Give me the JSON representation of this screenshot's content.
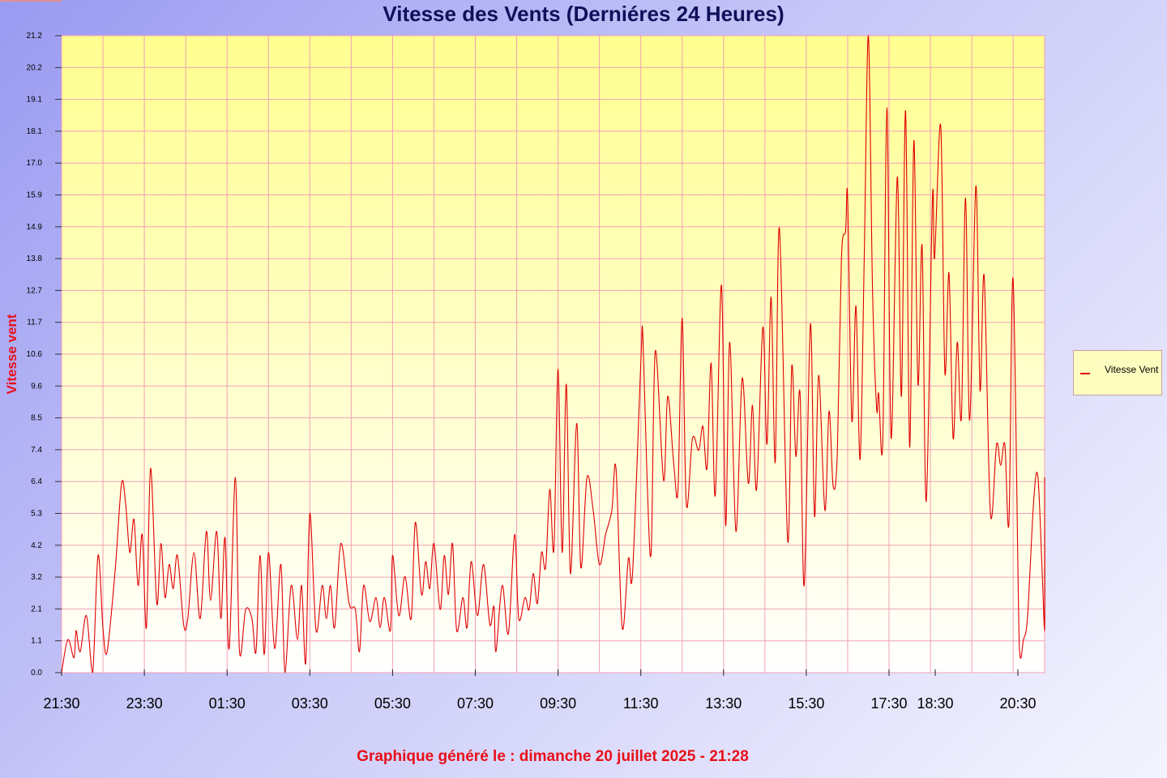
{
  "title": "Vitesse des Vents (Derniéres 24 Heures)",
  "ylabel": "Vitesse vent",
  "footer": "Graphique généré le : dimanche 20 juillet 2025 - 21:28",
  "legend": {
    "label": "Vitesse Vent"
  },
  "colors": {
    "line": "#e00000",
    "grid": "#f0a0b4",
    "plot_top": "#ffff90",
    "plot_bottom": "#ffffff",
    "title": "#10105a",
    "accent": "#e8101a"
  },
  "chart_data": {
    "type": "line",
    "title": "Vitesse des Vents (Derniéres 24 Heures)",
    "xlabel": "",
    "ylabel": "Vitesse vent",
    "x_range_hours": [
      0,
      23.8
    ],
    "ylim": [
      0,
      21.2
    ],
    "y_ticks": [
      "0.0",
      "1.1",
      "2.1",
      "3.2",
      "4.2",
      "5.3",
      "6.4",
      "7.4",
      "8.5",
      "9.6",
      "10.6",
      "11.7",
      "12.7",
      "13.8",
      "14.9",
      "15.9",
      "17.0",
      "18.1",
      "19.1",
      "20.2",
      "21.2"
    ],
    "x_ticks": [
      {
        "label": "21:30",
        "hours": 0
      },
      {
        "label": "23:30",
        "hours": 2
      },
      {
        "label": "01:30",
        "hours": 4
      },
      {
        "label": "03:30",
        "hours": 6
      },
      {
        "label": "05:30",
        "hours": 8
      },
      {
        "label": "07:30",
        "hours": 10
      },
      {
        "label": "09:30",
        "hours": 12
      },
      {
        "label": "11:30",
        "hours": 14
      },
      {
        "label": "13:30",
        "hours": 16
      },
      {
        "label": "15:30",
        "hours": 18
      },
      {
        "label": "17:30",
        "hours": 20
      },
      {
        "label": "18:30",
        "hours": 21.1
      },
      {
        "label": "20:30",
        "hours": 23.1
      }
    ],
    "grid": true,
    "legend_position": "right",
    "series": [
      {
        "name": "Vitesse Vent",
        "points": [
          [
            0.0,
            0.0
          ],
          [
            0.15,
            1.1
          ],
          [
            0.3,
            0.5
          ],
          [
            0.35,
            1.4
          ],
          [
            0.45,
            0.7
          ],
          [
            0.6,
            1.9
          ],
          [
            0.75,
            0.0
          ],
          [
            0.88,
            3.9
          ],
          [
            1.0,
            1.5
          ],
          [
            1.1,
            0.7
          ],
          [
            1.3,
            3.5
          ],
          [
            1.45,
            6.3
          ],
          [
            1.55,
            5.6
          ],
          [
            1.65,
            4.0
          ],
          [
            1.75,
            5.1
          ],
          [
            1.85,
            2.9
          ],
          [
            1.95,
            4.6
          ],
          [
            2.05,
            1.5
          ],
          [
            2.15,
            6.8
          ],
          [
            2.3,
            2.3
          ],
          [
            2.4,
            4.3
          ],
          [
            2.5,
            2.5
          ],
          [
            2.6,
            3.6
          ],
          [
            2.7,
            2.8
          ],
          [
            2.8,
            3.9
          ],
          [
            2.95,
            1.6
          ],
          [
            3.05,
            1.8
          ],
          [
            3.2,
            4.0
          ],
          [
            3.35,
            1.8
          ],
          [
            3.5,
            4.7
          ],
          [
            3.6,
            2.4
          ],
          [
            3.75,
            4.7
          ],
          [
            3.85,
            1.8
          ],
          [
            3.95,
            4.5
          ],
          [
            4.05,
            0.8
          ],
          [
            4.2,
            6.5
          ],
          [
            4.3,
            0.7
          ],
          [
            4.45,
            2.1
          ],
          [
            4.6,
            1.8
          ],
          [
            4.7,
            0.7
          ],
          [
            4.8,
            3.9
          ],
          [
            4.9,
            0.6
          ],
          [
            5.0,
            4.0
          ],
          [
            5.15,
            0.8
          ],
          [
            5.3,
            3.6
          ],
          [
            5.4,
            0.0
          ],
          [
            5.55,
            2.9
          ],
          [
            5.7,
            1.1
          ],
          [
            5.8,
            2.9
          ],
          [
            5.9,
            0.3
          ],
          [
            6.0,
            5.3
          ],
          [
            6.15,
            1.4
          ],
          [
            6.3,
            2.9
          ],
          [
            6.4,
            1.8
          ],
          [
            6.5,
            2.9
          ],
          [
            6.6,
            1.5
          ],
          [
            6.75,
            4.3
          ],
          [
            6.95,
            2.3
          ],
          [
            7.1,
            2.1
          ],
          [
            7.2,
            0.7
          ],
          [
            7.3,
            2.9
          ],
          [
            7.45,
            1.7
          ],
          [
            7.6,
            2.5
          ],
          [
            7.7,
            1.5
          ],
          [
            7.8,
            2.5
          ],
          [
            7.95,
            1.4
          ],
          [
            8.0,
            3.9
          ],
          [
            8.15,
            1.9
          ],
          [
            8.3,
            3.2
          ],
          [
            8.45,
            1.8
          ],
          [
            8.55,
            5.0
          ],
          [
            8.7,
            2.6
          ],
          [
            8.8,
            3.7
          ],
          [
            8.9,
            2.8
          ],
          [
            9.0,
            4.3
          ],
          [
            9.15,
            2.1
          ],
          [
            9.25,
            3.9
          ],
          [
            9.35,
            2.6
          ],
          [
            9.45,
            4.3
          ],
          [
            9.55,
            1.4
          ],
          [
            9.7,
            2.5
          ],
          [
            9.8,
            1.5
          ],
          [
            9.9,
            3.7
          ],
          [
            10.05,
            1.9
          ],
          [
            10.2,
            3.6
          ],
          [
            10.35,
            1.6
          ],
          [
            10.45,
            2.2
          ],
          [
            10.5,
            0.7
          ],
          [
            10.65,
            2.9
          ],
          [
            10.8,
            1.3
          ],
          [
            10.95,
            4.6
          ],
          [
            11.05,
            1.8
          ],
          [
            11.2,
            2.5
          ],
          [
            11.3,
            2.1
          ],
          [
            11.4,
            3.3
          ],
          [
            11.5,
            2.3
          ],
          [
            11.6,
            4.0
          ],
          [
            11.7,
            3.5
          ],
          [
            11.8,
            6.1
          ],
          [
            11.9,
            4.1
          ],
          [
            12.0,
            10.1
          ],
          [
            12.1,
            4.0
          ],
          [
            12.2,
            9.6
          ],
          [
            12.3,
            3.3
          ],
          [
            12.45,
            8.3
          ],
          [
            12.55,
            3.5
          ],
          [
            12.7,
            6.5
          ],
          [
            12.85,
            5.4
          ],
          [
            13.0,
            3.6
          ],
          [
            13.15,
            4.6
          ],
          [
            13.3,
            5.4
          ],
          [
            13.4,
            6.8
          ],
          [
            13.55,
            1.5
          ],
          [
            13.7,
            3.8
          ],
          [
            13.8,
            3.3
          ],
          [
            14.0,
            10.3
          ],
          [
            14.05,
            11.2
          ],
          [
            14.15,
            6.5
          ],
          [
            14.25,
            4.0
          ],
          [
            14.35,
            10.7
          ],
          [
            14.55,
            6.4
          ],
          [
            14.65,
            9.2
          ],
          [
            14.8,
            6.9
          ],
          [
            14.9,
            6.1
          ],
          [
            15.0,
            11.8
          ],
          [
            15.1,
            5.6
          ],
          [
            15.25,
            7.8
          ],
          [
            15.4,
            7.4
          ],
          [
            15.5,
            8.2
          ],
          [
            15.6,
            6.8
          ],
          [
            15.7,
            10.3
          ],
          [
            15.8,
            5.9
          ],
          [
            15.95,
            12.9
          ],
          [
            16.05,
            4.9
          ],
          [
            16.15,
            11.0
          ],
          [
            16.3,
            4.7
          ],
          [
            16.45,
            9.8
          ],
          [
            16.6,
            6.3
          ],
          [
            16.7,
            8.9
          ],
          [
            16.8,
            6.1
          ],
          [
            16.95,
            11.5
          ],
          [
            17.05,
            7.6
          ],
          [
            17.15,
            12.5
          ],
          [
            17.25,
            7.0
          ],
          [
            17.35,
            14.8
          ],
          [
            17.55,
            4.4
          ],
          [
            17.65,
            10.2
          ],
          [
            17.75,
            7.2
          ],
          [
            17.85,
            9.3
          ],
          [
            17.95,
            2.9
          ],
          [
            18.1,
            11.6
          ],
          [
            18.2,
            5.2
          ],
          [
            18.3,
            9.9
          ],
          [
            18.45,
            5.4
          ],
          [
            18.55,
            8.7
          ],
          [
            18.65,
            6.2
          ],
          [
            18.75,
            7.3
          ],
          [
            18.85,
            13.8
          ],
          [
            18.95,
            14.7
          ],
          [
            19.0,
            15.8
          ],
          [
            19.1,
            8.4
          ],
          [
            19.2,
            12.2
          ],
          [
            19.3,
            7.1
          ],
          [
            19.4,
            13.8
          ],
          [
            19.5,
            21.2
          ],
          [
            19.6,
            12.8
          ],
          [
            19.7,
            8.8
          ],
          [
            19.75,
            9.3
          ],
          [
            19.85,
            7.7
          ],
          [
            19.95,
            18.8
          ],
          [
            20.05,
            7.8
          ],
          [
            20.2,
            16.5
          ],
          [
            20.3,
            9.2
          ],
          [
            20.4,
            18.7
          ],
          [
            20.5,
            7.5
          ],
          [
            20.6,
            17.7
          ],
          [
            20.7,
            9.6
          ],
          [
            20.8,
            14.2
          ],
          [
            20.9,
            5.7
          ],
          [
            21.05,
            15.8
          ],
          [
            21.1,
            13.8
          ],
          [
            21.25,
            18.2
          ],
          [
            21.35,
            10.0
          ],
          [
            21.45,
            13.3
          ],
          [
            21.55,
            7.8
          ],
          [
            21.65,
            11.0
          ],
          [
            21.75,
            8.5
          ],
          [
            21.85,
            15.8
          ],
          [
            21.95,
            8.4
          ],
          [
            22.1,
            16.2
          ],
          [
            22.2,
            9.4
          ],
          [
            22.3,
            13.2
          ],
          [
            22.45,
            5.3
          ],
          [
            22.6,
            7.6
          ],
          [
            22.7,
            6.9
          ],
          [
            22.8,
            7.6
          ],
          [
            22.9,
            5.0
          ],
          [
            23.0,
            13.1
          ],
          [
            23.15,
            0.8
          ],
          [
            23.25,
            1.1
          ],
          [
            23.35,
            1.9
          ],
          [
            23.5,
            5.8
          ],
          [
            23.6,
            6.5
          ],
          [
            23.7,
            3.4
          ],
          [
            23.8,
            1.5
          ],
          [
            23.9,
            5.4
          ],
          [
            24.0,
            1.4
          ],
          [
            24.1,
            6.5
          ]
        ]
      }
    ]
  }
}
